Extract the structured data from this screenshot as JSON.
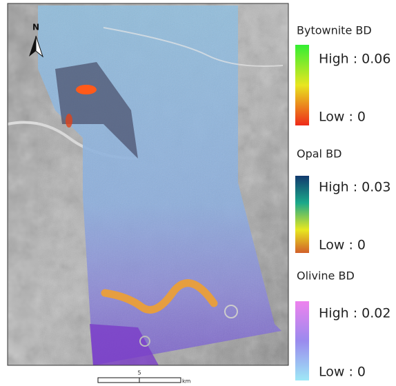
{
  "north_arrow": "N",
  "legend": [
    {
      "title": "Bytownite BD",
      "high": "High : 0.06",
      "low": "Low : 0"
    },
    {
      "title": "Opal BD",
      "high": "High : 0.03",
      "low": "Low : 0"
    },
    {
      "title": "Olivine BD",
      "high": "High : 0.02",
      "low": "Low : 0"
    }
  ],
  "scale_bar": {
    "label": "5",
    "unit": "km"
  }
}
